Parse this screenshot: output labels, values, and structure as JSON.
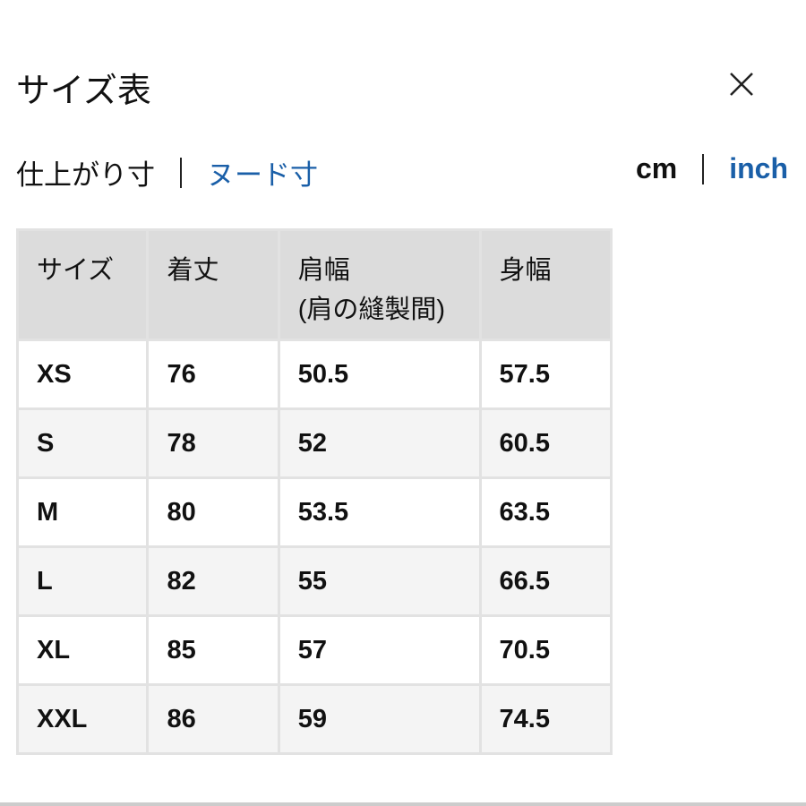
{
  "title": "サイズ表",
  "close_icon": "close-icon",
  "measure_tabs": [
    {
      "label": "仕上がり寸",
      "active": true
    },
    {
      "label": "ヌード寸",
      "active": false
    }
  ],
  "unit_tabs": [
    {
      "label": "cm",
      "active": true
    },
    {
      "label": "inch",
      "active": false
    }
  ],
  "colors": {
    "link": "#1a5fa8",
    "header_bg": "#dcdcdc",
    "alt_row_bg": "#f4f4f4"
  },
  "table": {
    "headers": [
      "サイズ",
      "着丈",
      "肩幅",
      "身幅"
    ],
    "header_sub": {
      "shoulder": "(肩の縫製間)"
    },
    "rows": [
      [
        "XS",
        "76",
        "50.5",
        "57.5"
      ],
      [
        "S",
        "78",
        "52",
        "60.5"
      ],
      [
        "M",
        "80",
        "53.5",
        "63.5"
      ],
      [
        "L",
        "82",
        "55",
        "66.5"
      ],
      [
        "XL",
        "85",
        "57",
        "70.5"
      ],
      [
        "XXL",
        "86",
        "59",
        "74.5"
      ]
    ]
  }
}
